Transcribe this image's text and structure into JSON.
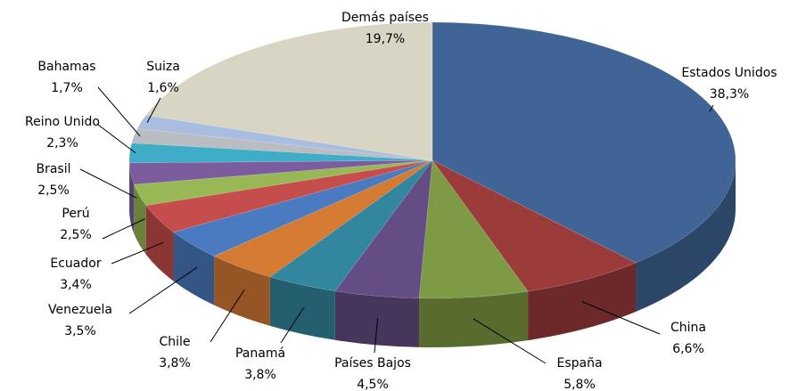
{
  "chart_data": {
    "type": "pie3d",
    "categories": [
      "Estados Unidos",
      "China",
      "España",
      "Países Bajos",
      "Panamá",
      "Chile",
      "Venezuela",
      "Ecuador",
      "Perú",
      "Brasil",
      "Reino Unido",
      "Bahamas",
      "Suiza",
      "Demás países"
    ],
    "values": [
      38.3,
      6.6,
      5.8,
      4.5,
      3.8,
      3.8,
      3.5,
      3.4,
      2.5,
      2.5,
      2.3,
      1.7,
      1.6,
      19.7
    ],
    "value_labels": [
      "38,3%",
      "6,6%",
      "5,8%",
      "4,5%",
      "3,8%",
      "3,8%",
      "3,5%",
      "3,4%",
      "2,5%",
      "2,5%",
      "2,3%",
      "1,7%",
      "1,6%",
      "19,7%"
    ],
    "colors": [
      "#3f6495",
      "#9b3b3a",
      "#7e9a45",
      "#644d84",
      "#32879f",
      "#d57a33",
      "#4a7bc0",
      "#c54d4b",
      "#98b755",
      "#7b5d9e",
      "#3fadc8",
      "#b9bcc0",
      "#a8bde0",
      "#d8d5c5"
    ]
  }
}
